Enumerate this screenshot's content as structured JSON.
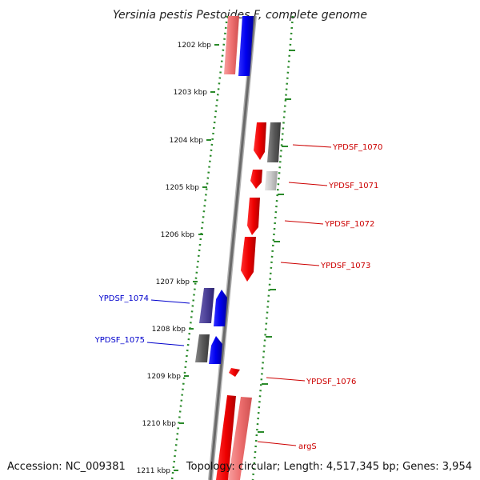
{
  "title": "Yersinia pestis Pestoides F, complete genome",
  "footer": {
    "accession": "Accession: NC_009381",
    "summary": "Topology: circular; Length: 4,517,345 bp; Genes: 3,954"
  },
  "ticks": [
    "1202 kbp",
    "1203 kbp",
    "1204 kbp",
    "1205 kbp",
    "1206 kbp",
    "1207 kbp",
    "1208 kbp",
    "1209 kbp",
    "1210 kbp",
    "1211 kbp"
  ],
  "genes": [
    {
      "label": "YPDSF_1070",
      "color": "#cc0000",
      "side": "right"
    },
    {
      "label": "YPDSF_1071",
      "color": "#cc0000",
      "side": "right"
    },
    {
      "label": "YPDSF_1072",
      "color": "#cc0000",
      "side": "right"
    },
    {
      "label": "YPDSF_1073",
      "color": "#cc0000",
      "side": "right"
    },
    {
      "label": "YPDSF_1074",
      "color": "#0000cc",
      "side": "left"
    },
    {
      "label": "YPDSF_1075",
      "color": "#0000cc",
      "side": "left"
    },
    {
      "label": "YPDSF_1076",
      "color": "#cc0000",
      "side": "right"
    },
    {
      "label": "argS",
      "color": "#cc0000",
      "side": "right"
    }
  ],
  "colors": {
    "forward": "#ff0000",
    "reverse": "#0000ff",
    "tick": "#2a8a2a",
    "backbone": "#808080"
  }
}
